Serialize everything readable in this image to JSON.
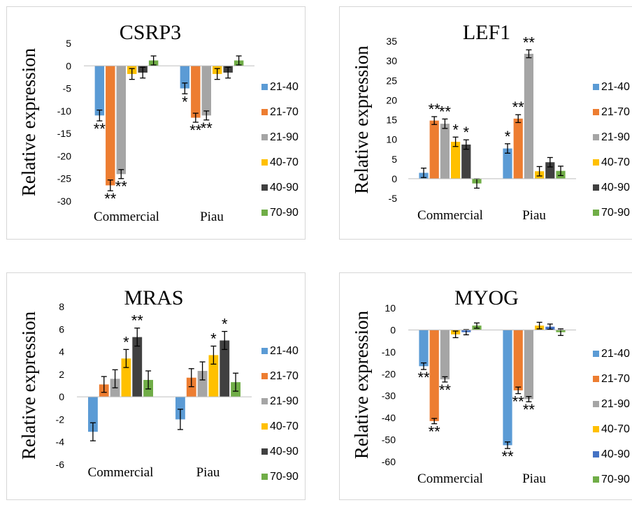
{
  "chart_data": [
    {
      "type": "bar",
      "title": "CSRP3",
      "ylabel": "Relative expression",
      "xlabel": "",
      "ylim": [
        -30,
        5
      ],
      "yticks": [
        5,
        0,
        -5,
        -10,
        -15,
        -20,
        -25,
        -30
      ],
      "categories": [
        "Commercial",
        "Piau"
      ],
      "series": [
        {
          "name": "21-40",
          "color": "#5B9BD5",
          "values": [
            -11,
            -5
          ],
          "errors": [
            1.2,
            1.2
          ],
          "significance": [
            "**",
            "*"
          ]
        },
        {
          "name": "21-70",
          "color": "#ED7D31",
          "values": [
            -26.5,
            -11.5
          ],
          "errors": [
            1.2,
            1.0
          ],
          "significance": [
            "**",
            "**"
          ]
        },
        {
          "name": "21-90",
          "color": "#A5A5A5",
          "values": [
            -24,
            -11
          ],
          "errors": [
            1.0,
            1.0
          ],
          "significance": [
            "**",
            "**"
          ]
        },
        {
          "name": "40-70",
          "color": "#FFC000",
          "values": [
            -1.8,
            -1.8
          ],
          "errors": [
            1.2,
            1.2
          ],
          "significance": [
            "",
            ""
          ]
        },
        {
          "name": "40-90",
          "color": "#404040",
          "values": [
            -1.5,
            -1.5
          ],
          "errors": [
            1.2,
            1.2
          ],
          "significance": [
            "",
            ""
          ]
        },
        {
          "name": "70-90",
          "color": "#70AD47",
          "values": [
            1.2,
            1.2
          ],
          "errors": [
            1.0,
            1.0
          ],
          "significance": [
            "",
            ""
          ]
        }
      ]
    },
    {
      "type": "bar",
      "title": "LEF1",
      "ylabel": "Relative expression",
      "xlabel": "",
      "ylim": [
        -5,
        35
      ],
      "yticks": [
        35,
        30,
        25,
        20,
        15,
        10,
        5,
        0,
        -5
      ],
      "categories": [
        "Commercial",
        "Piau"
      ],
      "series": [
        {
          "name": "21-40",
          "color": "#5B9BD5",
          "values": [
            1.5,
            7.7
          ],
          "errors": [
            1.2,
            1.2
          ],
          "significance": [
            "",
            "*"
          ]
        },
        {
          "name": "21-70",
          "color": "#ED7D31",
          "values": [
            14.8,
            15.3
          ],
          "errors": [
            1.0,
            1.0
          ],
          "significance": [
            "**",
            "**"
          ]
        },
        {
          "name": "21-90",
          "color": "#A5A5A5",
          "values": [
            14.0,
            31.8
          ],
          "errors": [
            1.2,
            1.0
          ],
          "significance": [
            "**",
            "**"
          ]
        },
        {
          "name": "40-70",
          "color": "#FFC000",
          "values": [
            9.4,
            1.9
          ],
          "errors": [
            1.2,
            1.2
          ],
          "significance": [
            "*",
            ""
          ]
        },
        {
          "name": "40-90",
          "color": "#404040",
          "values": [
            8.7,
            4.2
          ],
          "errors": [
            1.2,
            1.2
          ],
          "significance": [
            "*",
            ""
          ]
        },
        {
          "name": "70-90",
          "color": "#70AD47",
          "values": [
            -1.2,
            2.0
          ],
          "errors": [
            1.2,
            1.2
          ],
          "significance": [
            "",
            ""
          ]
        }
      ]
    },
    {
      "type": "bar",
      "title": "MRAS",
      "ylabel": "Relative expression",
      "xlabel": "",
      "ylim": [
        -6,
        8
      ],
      "yticks": [
        8,
        6,
        4,
        2,
        0,
        -2,
        -4,
        -6
      ],
      "categories": [
        "Commercial",
        "Piau"
      ],
      "series": [
        {
          "name": "21-40",
          "color": "#5B9BD5",
          "values": [
            -3.1,
            -2.0
          ],
          "errors": [
            0.8,
            0.9
          ],
          "significance": [
            "",
            ""
          ]
        },
        {
          "name": "21-70",
          "color": "#ED7D31",
          "values": [
            1.1,
            1.7
          ],
          "errors": [
            0.7,
            0.8
          ],
          "significance": [
            "",
            ""
          ]
        },
        {
          "name": "21-90",
          "color": "#A5A5A5",
          "values": [
            1.6,
            2.3
          ],
          "errors": [
            0.8,
            0.8
          ],
          "significance": [
            "",
            ""
          ]
        },
        {
          "name": "40-70",
          "color": "#FFC000",
          "values": [
            3.4,
            3.7
          ],
          "errors": [
            0.8,
            0.8
          ],
          "significance": [
            "*",
            "*"
          ]
        },
        {
          "name": "40-90",
          "color": "#404040",
          "values": [
            5.3,
            5.0
          ],
          "errors": [
            0.8,
            0.8
          ],
          "significance": [
            "**",
            "*"
          ]
        },
        {
          "name": "70-90",
          "color": "#70AD47",
          "values": [
            1.5,
            1.3
          ],
          "errors": [
            0.8,
            0.8
          ],
          "significance": [
            "",
            ""
          ]
        }
      ]
    },
    {
      "type": "bar",
      "title": "MYOG",
      "ylabel": "Relative expression",
      "xlabel": "",
      "ylim": [
        -60,
        10
      ],
      "yticks": [
        10,
        0,
        -10,
        -20,
        -30,
        -40,
        -50,
        -60
      ],
      "categories": [
        "Commercial",
        "Piau"
      ],
      "series": [
        {
          "name": "21-40",
          "color": "#5B9BD5",
          "values": [
            -16.5,
            -52.5
          ],
          "errors": [
            1.5,
            1.5
          ],
          "significance": [
            "**",
            "**"
          ]
        },
        {
          "name": "21-70",
          "color": "#ED7D31",
          "values": [
            -41.5,
            -27.5
          ],
          "errors": [
            1.2,
            1.5
          ],
          "significance": [
            "**",
            "**"
          ]
        },
        {
          "name": "21-90",
          "color": "#A5A5A5",
          "values": [
            -22.5,
            -31.5
          ],
          "errors": [
            1.2,
            1.2
          ],
          "significance": [
            "**",
            "**"
          ]
        },
        {
          "name": "40-70",
          "color": "#FFC000",
          "values": [
            -2.0,
            2.0
          ],
          "errors": [
            1.5,
            1.5
          ],
          "significance": [
            "",
            ""
          ]
        },
        {
          "name": "40-90",
          "color": "#4472C4",
          "values": [
            -1.0,
            1.5
          ],
          "errors": [
            1.2,
            1.2
          ],
          "significance": [
            "",
            ""
          ]
        },
        {
          "name": "70-90",
          "color": "#70AD47",
          "values": [
            2.0,
            -1.0
          ],
          "errors": [
            1.2,
            1.5
          ],
          "significance": [
            "",
            ""
          ]
        }
      ]
    }
  ]
}
